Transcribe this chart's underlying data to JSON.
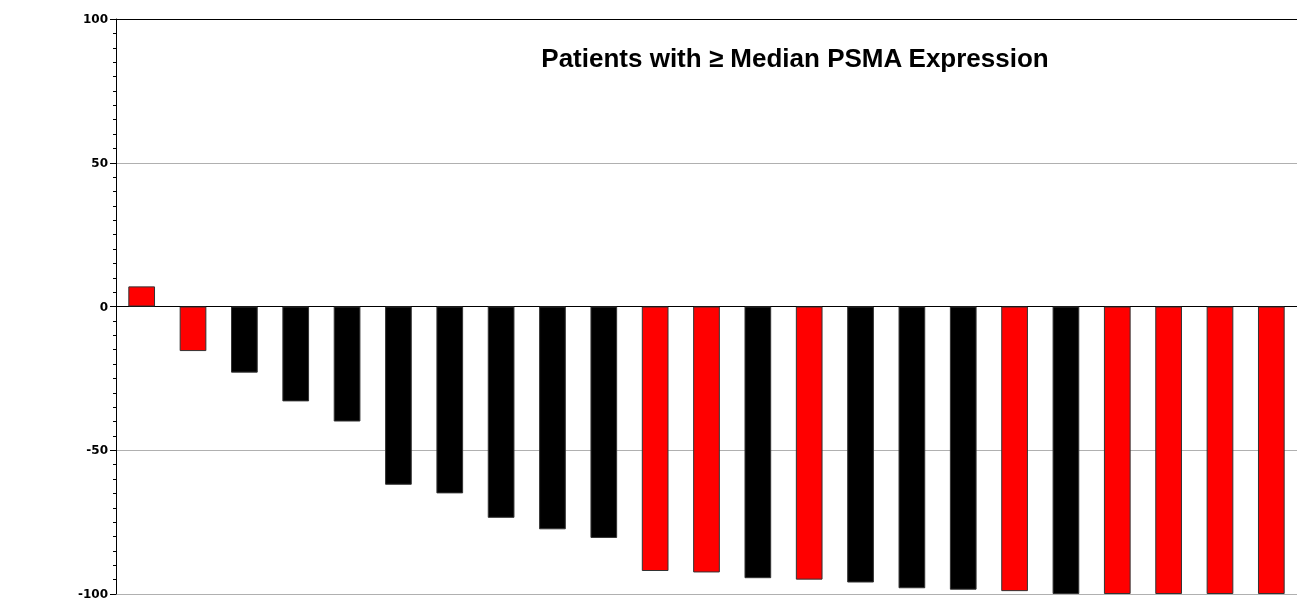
{
  "chart_data": {
    "type": "bar",
    "title": "Patients with ≥ Median PSMA Expression",
    "categories": [
      null,
      null,
      null,
      null,
      null,
      null,
      null,
      null,
      null,
      null,
      null,
      null,
      null,
      null,
      null,
      null,
      null,
      null,
      null,
      null,
      null,
      null,
      null
    ],
    "values": [
      7,
      -15.5,
      -23,
      -33,
      -40,
      -62,
      -65,
      -73.5,
      -77.5,
      -80.5,
      -92,
      -92.5,
      -94.5,
      -95,
      -96,
      -98,
      -98.5,
      -99,
      -100,
      -100,
      -100,
      -100,
      -100
    ],
    "colors": [
      "#ff0000",
      "#ff0000",
      "#000000",
      "#000000",
      "#000000",
      "#000000",
      "#000000",
      "#000000",
      "#000000",
      "#000000",
      "#ff0000",
      "#ff0000",
      "#000000",
      "#ff0000",
      "#000000",
      "#000000",
      "#000000",
      "#ff0000",
      "#000000",
      "#ff0000",
      "#ff0000",
      "#ff0000",
      "#ff0000"
    ],
    "ylim": [
      -100,
      100
    ],
    "yticks": [
      -100,
      -50,
      0,
      50,
      100
    ],
    "grid": "y"
  }
}
